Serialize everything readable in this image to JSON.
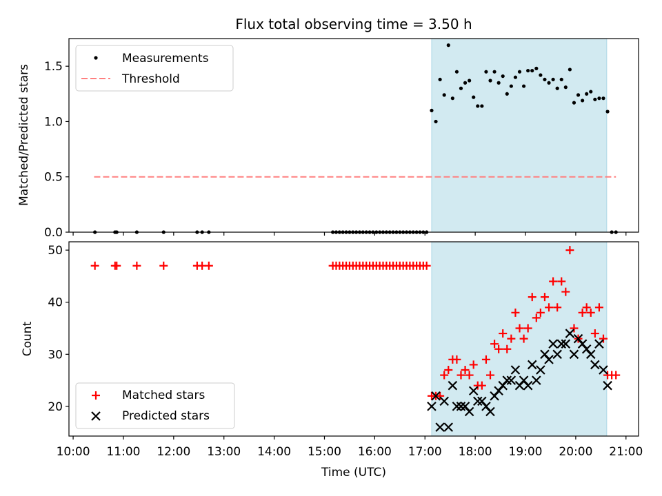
{
  "title": "Flux total observing time = 3.50 h",
  "colors": {
    "shade": "#add8e6",
    "measurement": "#000000",
    "threshold": "#ff7f7f",
    "matched": "#ff0000",
    "predicted": "#000000"
  },
  "chart_data": [
    {
      "type": "scatter",
      "panel": "top",
      "xlabel": "",
      "ylabel": "Matched/Predicted stars",
      "ylim": [
        0,
        1.75
      ],
      "yticks": [
        0.0,
        0.5,
        1.0,
        1.5
      ],
      "ytick_labels": [
        "0.0",
        "0.5",
        "1.0",
        "1.5"
      ],
      "xlim": [
        "09:55",
        "21:15"
      ],
      "shaded_span": [
        "17:08",
        "20:37"
      ],
      "legend": {
        "placement": "upper-left",
        "entries": [
          "Measurements",
          "Threshold"
        ]
      },
      "threshold": {
        "name": "Threshold",
        "y": 0.5,
        "x": [
          "10:25",
          "20:48"
        ]
      },
      "series": [
        {
          "name": "Measurements",
          "points": [
            [
              "10:26",
              0
            ],
            [
              "10:50",
              0
            ],
            [
              "10:52",
              0
            ],
            [
              "11:16",
              0
            ],
            [
              "11:48",
              0
            ],
            [
              "12:28",
              0
            ],
            [
              "12:34",
              0
            ],
            [
              "12:42",
              0
            ],
            [
              "15:10",
              0
            ],
            [
              "15:14",
              0
            ],
            [
              "15:18",
              0
            ],
            [
              "15:22",
              0
            ],
            [
              "15:26",
              0
            ],
            [
              "15:30",
              0
            ],
            [
              "15:34",
              0
            ],
            [
              "15:38",
              0
            ],
            [
              "15:42",
              0
            ],
            [
              "15:46",
              0
            ],
            [
              "15:50",
              0
            ],
            [
              "15:54",
              0
            ],
            [
              "15:58",
              0
            ],
            [
              "16:02",
              0
            ],
            [
              "16:06",
              0
            ],
            [
              "16:10",
              0
            ],
            [
              "16:14",
              0
            ],
            [
              "16:18",
              0
            ],
            [
              "16:22",
              0
            ],
            [
              "16:26",
              0
            ],
            [
              "16:30",
              0
            ],
            [
              "16:34",
              0
            ],
            [
              "16:38",
              0
            ],
            [
              "16:42",
              0
            ],
            [
              "16:46",
              0
            ],
            [
              "16:50",
              0
            ],
            [
              "16:54",
              0
            ],
            [
              "16:58",
              0
            ],
            [
              "17:02",
              0
            ],
            [
              "17:08",
              1.1
            ],
            [
              "17:13",
              1.0
            ],
            [
              "17:18",
              1.38
            ],
            [
              "17:23",
              1.24
            ],
            [
              "17:28",
              1.69
            ],
            [
              "17:33",
              1.21
            ],
            [
              "17:38",
              1.45
            ],
            [
              "17:43",
              1.3
            ],
            [
              "17:48",
              1.35
            ],
            [
              "17:53",
              1.37
            ],
            [
              "17:58",
              1.22
            ],
            [
              "18:03",
              1.14
            ],
            [
              "18:08",
              1.14
            ],
            [
              "18:13",
              1.45
            ],
            [
              "18:18",
              1.37
            ],
            [
              "18:23",
              1.45
            ],
            [
              "18:28",
              1.35
            ],
            [
              "18:33",
              1.41
            ],
            [
              "18:38",
              1.25
            ],
            [
              "18:43",
              1.32
            ],
            [
              "18:48",
              1.4
            ],
            [
              "18:53",
              1.45
            ],
            [
              "18:58",
              1.32
            ],
            [
              "19:03",
              1.46
            ],
            [
              "19:08",
              1.46
            ],
            [
              "19:13",
              1.48
            ],
            [
              "19:18",
              1.42
            ],
            [
              "19:23",
              1.38
            ],
            [
              "19:28",
              1.35
            ],
            [
              "19:33",
              1.38
            ],
            [
              "19:38",
              1.3
            ],
            [
              "19:43",
              1.38
            ],
            [
              "19:48",
              1.31
            ],
            [
              "19:53",
              1.47
            ],
            [
              "19:58",
              1.17
            ],
            [
              "20:03",
              1.24
            ],
            [
              "20:08",
              1.19
            ],
            [
              "20:13",
              1.25
            ],
            [
              "20:18",
              1.27
            ],
            [
              "20:23",
              1.2
            ],
            [
              "20:28",
              1.21
            ],
            [
              "20:33",
              1.21
            ],
            [
              "20:38",
              1.09
            ],
            [
              "20:43",
              0
            ],
            [
              "20:48",
              0
            ]
          ]
        }
      ]
    },
    {
      "type": "scatter",
      "panel": "bottom",
      "xlabel": "Time (UTC)",
      "ylabel": "Count",
      "ylim": [
        14.3,
        51.6
      ],
      "yticks": [
        20,
        30,
        40,
        50
      ],
      "ytick_labels": [
        "20",
        "30",
        "40",
        "50"
      ],
      "xlim": [
        "09:55",
        "21:15"
      ],
      "xticks": [
        "10:00",
        "11:00",
        "12:00",
        "13:00",
        "14:00",
        "15:00",
        "16:00",
        "17:00",
        "18:00",
        "19:00",
        "20:00",
        "21:00"
      ],
      "shaded_span": [
        "17:08",
        "20:37"
      ],
      "legend": {
        "placement": "lower-left",
        "entries": [
          "Matched stars",
          "Predicted stars"
        ]
      },
      "series": [
        {
          "name": "Matched stars",
          "marker": "plus",
          "points": [
            [
              "10:26",
              47
            ],
            [
              "10:50",
              47
            ],
            [
              "10:52",
              47
            ],
            [
              "11:16",
              47
            ],
            [
              "11:48",
              47
            ],
            [
              "12:28",
              47
            ],
            [
              "12:34",
              47
            ],
            [
              "12:42",
              47
            ],
            [
              "15:10",
              47
            ],
            [
              "15:14",
              47
            ],
            [
              "15:18",
              47
            ],
            [
              "15:22",
              47
            ],
            [
              "15:26",
              47
            ],
            [
              "15:30",
              47
            ],
            [
              "15:34",
              47
            ],
            [
              "15:38",
              47
            ],
            [
              "15:42",
              47
            ],
            [
              "15:46",
              47
            ],
            [
              "15:50",
              47
            ],
            [
              "15:54",
              47
            ],
            [
              "15:58",
              47
            ],
            [
              "16:02",
              47
            ],
            [
              "16:06",
              47
            ],
            [
              "16:10",
              47
            ],
            [
              "16:14",
              47
            ],
            [
              "16:18",
              47
            ],
            [
              "16:22",
              47
            ],
            [
              "16:26",
              47
            ],
            [
              "16:30",
              47
            ],
            [
              "16:34",
              47
            ],
            [
              "16:38",
              47
            ],
            [
              "16:42",
              47
            ],
            [
              "16:46",
              47
            ],
            [
              "16:50",
              47
            ],
            [
              "16:54",
              47
            ],
            [
              "16:58",
              47
            ],
            [
              "17:02",
              47
            ],
            [
              "17:08",
              22
            ],
            [
              "17:13",
              22
            ],
            [
              "17:18",
              22
            ],
            [
              "17:23",
              26
            ],
            [
              "17:28",
              27
            ],
            [
              "17:33",
              29
            ],
            [
              "17:38",
              29
            ],
            [
              "17:43",
              26
            ],
            [
              "17:48",
              27
            ],
            [
              "17:53",
              26
            ],
            [
              "17:58",
              28
            ],
            [
              "18:03",
              24
            ],
            [
              "18:08",
              24
            ],
            [
              "18:13",
              29
            ],
            [
              "18:18",
              26
            ],
            [
              "18:23",
              32
            ],
            [
              "18:28",
              31
            ],
            [
              "18:33",
              34
            ],
            [
              "18:38",
              31
            ],
            [
              "18:43",
              33
            ],
            [
              "18:48",
              38
            ],
            [
              "18:53",
              35
            ],
            [
              "18:58",
              33
            ],
            [
              "19:03",
              35
            ],
            [
              "19:08",
              41
            ],
            [
              "19:13",
              37
            ],
            [
              "19:18",
              38
            ],
            [
              "19:23",
              41
            ],
            [
              "19:28",
              39
            ],
            [
              "19:33",
              44
            ],
            [
              "19:38",
              39
            ],
            [
              "19:43",
              44
            ],
            [
              "19:48",
              42
            ],
            [
              "19:53",
              50
            ],
            [
              "19:58",
              35
            ],
            [
              "20:03",
              33
            ],
            [
              "20:08",
              38
            ],
            [
              "20:13",
              39
            ],
            [
              "20:18",
              38
            ],
            [
              "20:23",
              34
            ],
            [
              "20:28",
              39
            ],
            [
              "20:33",
              33
            ],
            [
              "20:38",
              26
            ],
            [
              "20:43",
              26
            ],
            [
              "20:48",
              26
            ]
          ]
        },
        {
          "name": "Predicted stars",
          "marker": "x",
          "points": [
            [
              "17:08",
              20
            ],
            [
              "17:13",
              22
            ],
            [
              "17:18",
              16
            ],
            [
              "17:23",
              21
            ],
            [
              "17:28",
              16
            ],
            [
              "17:33",
              24
            ],
            [
              "17:38",
              20
            ],
            [
              "17:43",
              20
            ],
            [
              "17:48",
              20
            ],
            [
              "17:53",
              19
            ],
            [
              "17:58",
              23
            ],
            [
              "18:03",
              21
            ],
            [
              "18:08",
              21
            ],
            [
              "18:13",
              20
            ],
            [
              "18:18",
              19
            ],
            [
              "18:23",
              22
            ],
            [
              "18:28",
              23
            ],
            [
              "18:33",
              24
            ],
            [
              "18:38",
              25
            ],
            [
              "18:43",
              25
            ],
            [
              "18:48",
              27
            ],
            [
              "18:53",
              24
            ],
            [
              "18:58",
              25
            ],
            [
              "19:03",
              24
            ],
            [
              "19:08",
              28
            ],
            [
              "19:13",
              25
            ],
            [
              "19:18",
              27
            ],
            [
              "19:23",
              30
            ],
            [
              "19:28",
              29
            ],
            [
              "19:33",
              32
            ],
            [
              "19:38",
              30
            ],
            [
              "19:43",
              32
            ],
            [
              "19:48",
              32
            ],
            [
              "19:53",
              34
            ],
            [
              "19:58",
              30
            ],
            [
              "20:03",
              33
            ],
            [
              "20:08",
              32
            ],
            [
              "20:13",
              31
            ],
            [
              "20:18",
              30
            ],
            [
              "20:23",
              28
            ],
            [
              "20:28",
              32
            ],
            [
              "20:33",
              27
            ],
            [
              "20:38",
              24
            ]
          ]
        }
      ]
    }
  ]
}
